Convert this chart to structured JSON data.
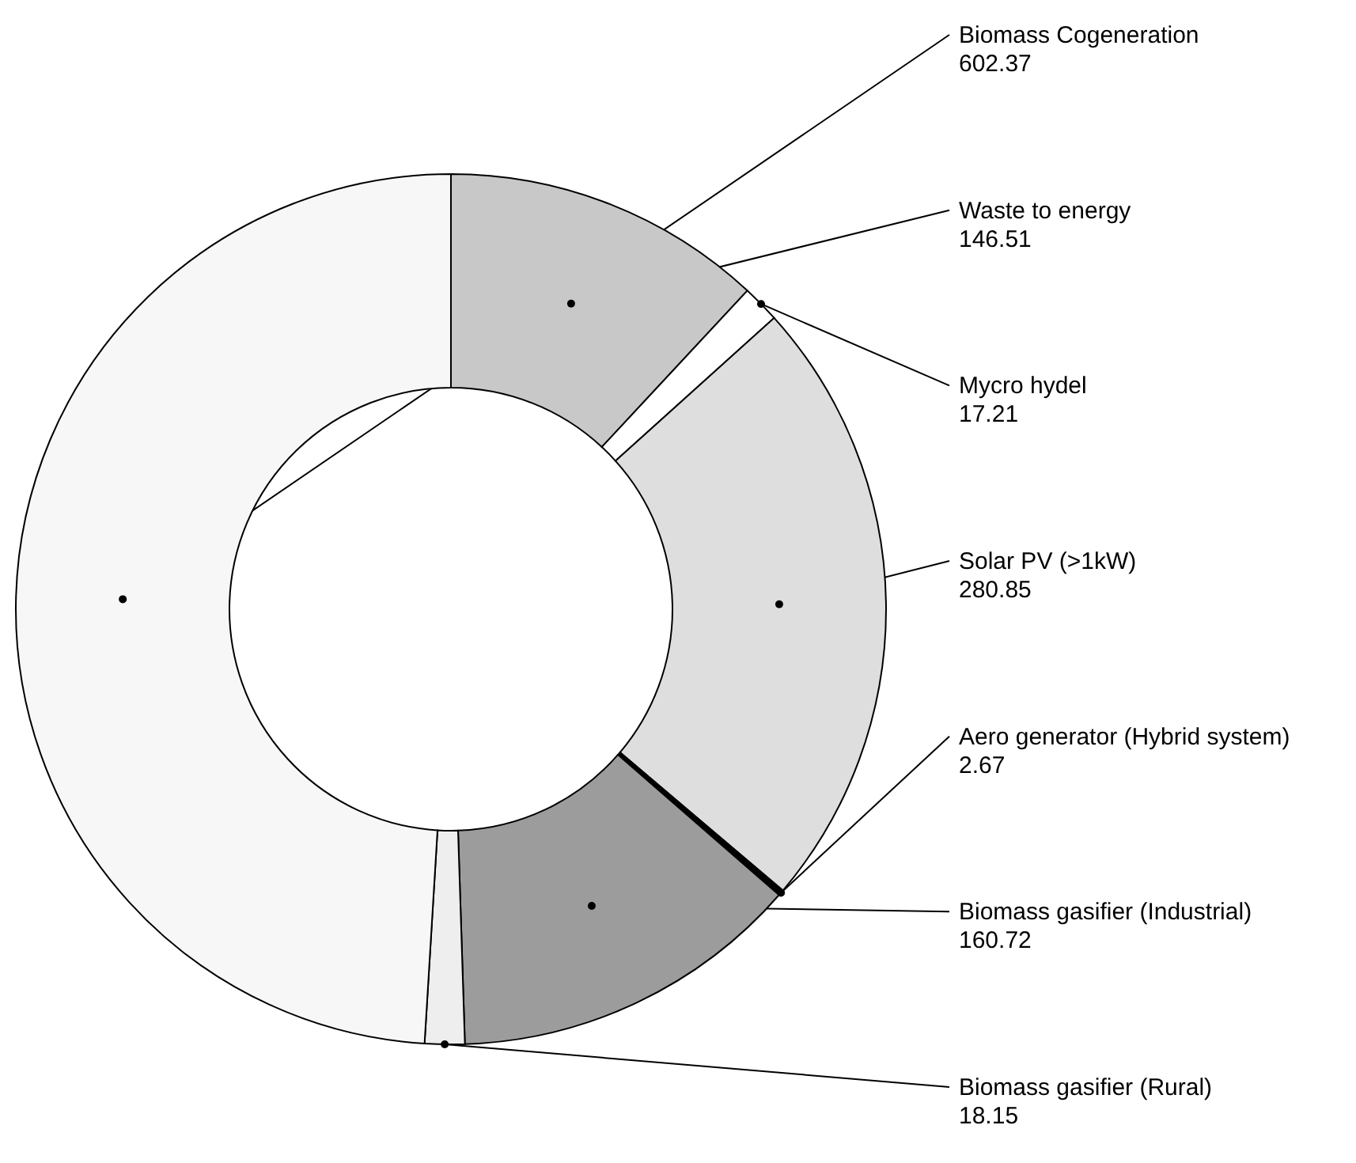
{
  "chart_data": {
    "type": "donut",
    "categories": [
      "Waste to energy",
      "Mycro hydel",
      "Solar PV (>1kW)",
      "Aero generator (Hybrid system)",
      "Biomass gasifier (Industrial)",
      "Biomass gasifier (Rural)",
      "Biomass Cogeneration"
    ],
    "values": [
      146.51,
      17.21,
      280.85,
      2.67,
      160.72,
      18.15,
      602.37
    ],
    "colors": [
      "#c8c8c8",
      "#ffffff",
      "#dedede",
      "#000000",
      "#9c9c9c",
      "#eeeeee",
      "#f7f7f7"
    ],
    "data_labels": true
  }
}
